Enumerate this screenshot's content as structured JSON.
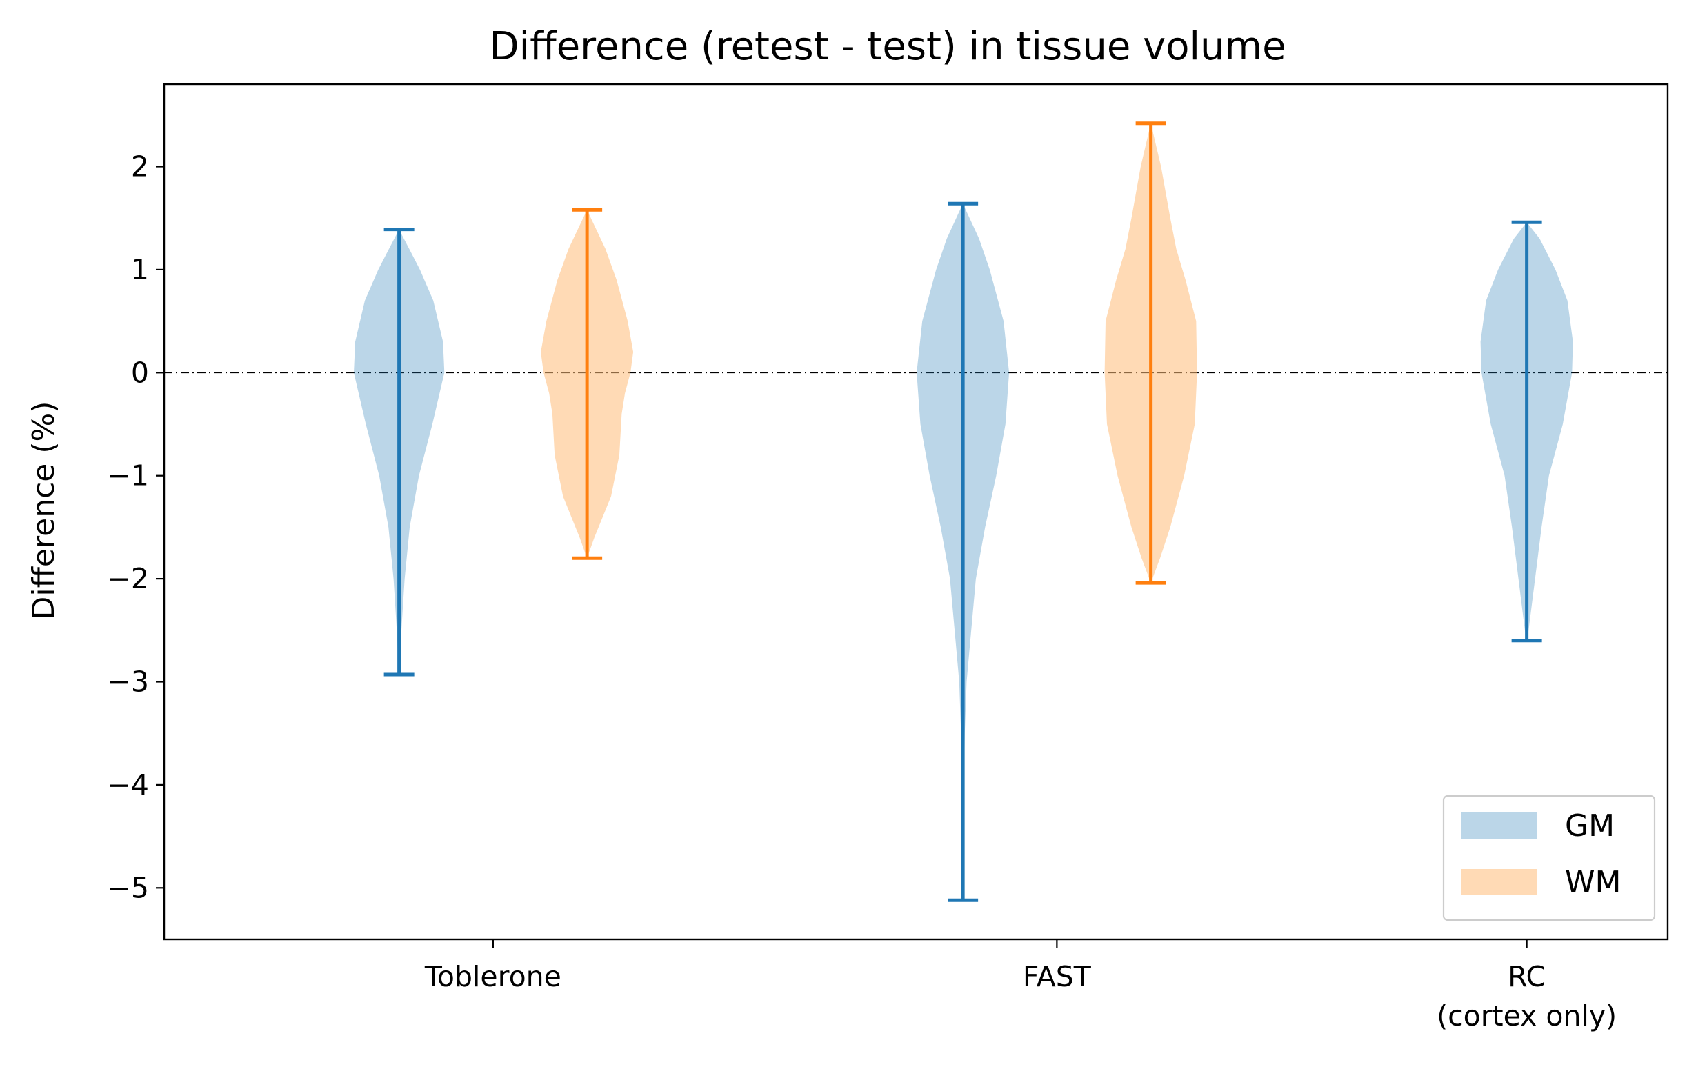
{
  "chart_data": {
    "type": "violin",
    "title": "Difference (retest - test) in tissue volume",
    "xlabel": "",
    "ylabel": "Difference (%)",
    "ylim": [
      -5.5,
      2.8
    ],
    "yticks": [
      -5,
      -4,
      -3,
      -2,
      -1,
      0,
      1,
      2
    ],
    "ytick_labels": [
      "−5",
      "−4",
      "−3",
      "−2",
      "−1",
      "0",
      "1",
      "2"
    ],
    "xlim": [
      -0.7,
      2.5
    ],
    "categories": [
      {
        "label": "Toblerone",
        "x": 0.0
      },
      {
        "label": "FAST",
        "x": 1.2
      },
      {
        "label": "RC\n(cortex only)",
        "x": 2.2
      }
    ],
    "reference_line": {
      "y": 0,
      "style": "dash-dot"
    },
    "legend": {
      "position": "lower-right"
    },
    "series": [
      {
        "name": "GM",
        "color": "#1f77b4",
        "fill": "#1f77b4",
        "violins": [
          {
            "category": "Toblerone",
            "x": -0.2,
            "min": -2.93,
            "max": 1.39,
            "profile": [
              [
                -2.93,
                0.0
              ],
              [
                -2.8,
                0.02
              ],
              [
                -2.5,
                0.05
              ],
              [
                -2.0,
                0.12
              ],
              [
                -1.5,
                0.23
              ],
              [
                -1.0,
                0.43
              ],
              [
                -0.5,
                0.72
              ],
              [
                0.0,
                0.98
              ],
              [
                0.3,
                0.95
              ],
              [
                0.7,
                0.74
              ],
              [
                1.0,
                0.45
              ],
              [
                1.2,
                0.22
              ],
              [
                1.39,
                0.0
              ]
            ]
          },
          {
            "category": "FAST",
            "x": 1.0,
            "min": -5.12,
            "max": 1.64,
            "profile": [
              [
                -5.12,
                0.0
              ],
              [
                -4.5,
                0.01
              ],
              [
                -3.5,
                0.04
              ],
              [
                -3.0,
                0.08
              ],
              [
                -2.5,
                0.18
              ],
              [
                -2.0,
                0.28
              ],
              [
                -1.5,
                0.48
              ],
              [
                -1.0,
                0.72
              ],
              [
                -0.5,
                0.92
              ],
              [
                0.0,
                1.0
              ],
              [
                0.5,
                0.88
              ],
              [
                1.0,
                0.58
              ],
              [
                1.3,
                0.35
              ],
              [
                1.64,
                0.0
              ]
            ]
          },
          {
            "category": "RC\n(cortex only)",
            "x": 2.2,
            "min": -2.6,
            "max": 1.46,
            "profile": [
              [
                -2.6,
                0.0
              ],
              [
                -2.5,
                0.04
              ],
              [
                -2.0,
                0.18
              ],
              [
                -1.5,
                0.32
              ],
              [
                -1.0,
                0.48
              ],
              [
                -0.5,
                0.78
              ],
              [
                0.0,
                0.98
              ],
              [
                0.3,
                1.0
              ],
              [
                0.7,
                0.88
              ],
              [
                1.0,
                0.62
              ],
              [
                1.3,
                0.28
              ],
              [
                1.46,
                0.0
              ]
            ]
          }
        ]
      },
      {
        "name": "WM",
        "color": "#ff7f0e",
        "fill": "#ffbb78",
        "violins": [
          {
            "category": "Toblerone",
            "x": 0.2,
            "min": -1.8,
            "max": 1.58,
            "profile": [
              [
                -1.8,
                0.0
              ],
              [
                -1.6,
                0.16
              ],
              [
                -1.2,
                0.52
              ],
              [
                -0.8,
                0.7
              ],
              [
                -0.4,
                0.75
              ],
              [
                -0.2,
                0.82
              ],
              [
                0.0,
                0.94
              ],
              [
                0.2,
                1.0
              ],
              [
                0.5,
                0.88
              ],
              [
                0.9,
                0.64
              ],
              [
                1.2,
                0.4
              ],
              [
                1.58,
                0.0
              ]
            ]
          },
          {
            "category": "FAST",
            "x": 1.4,
            "min": -2.04,
            "max": 2.42,
            "profile": [
              [
                -2.04,
                0.0
              ],
              [
                -1.8,
                0.2
              ],
              [
                -1.5,
                0.42
              ],
              [
                -1.0,
                0.72
              ],
              [
                -0.5,
                0.95
              ],
              [
                0.0,
                1.0
              ],
              [
                0.5,
                0.98
              ],
              [
                0.9,
                0.75
              ],
              [
                1.2,
                0.55
              ],
              [
                1.5,
                0.42
              ],
              [
                2.0,
                0.22
              ],
              [
                2.42,
                0.0
              ]
            ]
          }
        ]
      }
    ]
  }
}
